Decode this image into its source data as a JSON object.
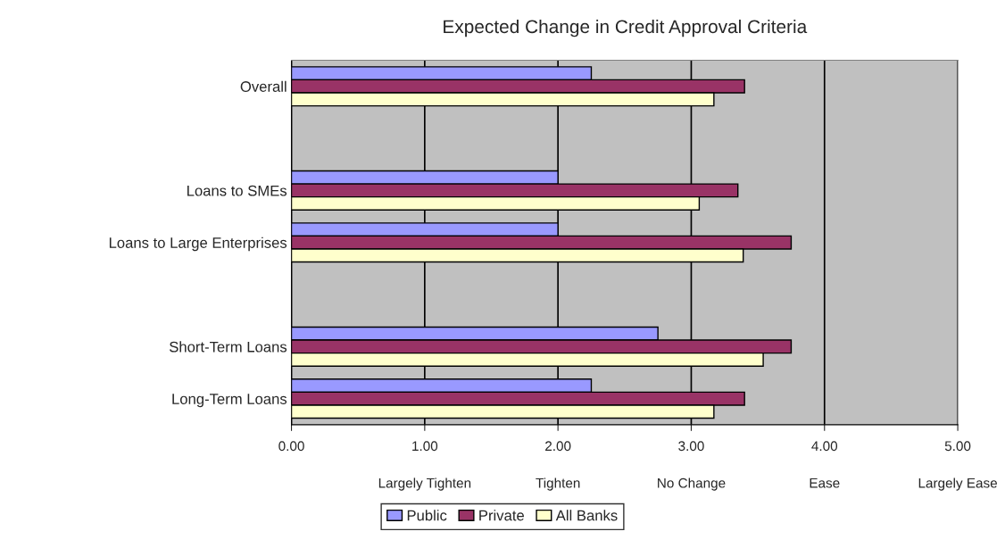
{
  "chart_data": {
    "type": "bar",
    "orientation": "horizontal",
    "title": "Expected Change in Credit Approval Criteria",
    "categories": [
      "Overall",
      null,
      "Loans to SMEs",
      "Loans to Large Enterprises",
      null,
      "Short-Term Loans",
      "Long-Term Loans"
    ],
    "series": [
      {
        "name": "Public",
        "color": "#9999ff",
        "values": [
          2.25,
          null,
          2.0,
          2.0,
          null,
          2.75,
          2.25
        ]
      },
      {
        "name": "Private",
        "color": "#993366",
        "values": [
          3.4,
          null,
          3.35,
          3.75,
          null,
          3.75,
          3.4
        ]
      },
      {
        "name": "All Banks",
        "color": "#ffffcc",
        "values": [
          3.17,
          null,
          3.06,
          3.39,
          null,
          3.54,
          3.17
        ]
      }
    ],
    "xlim": [
      0,
      5
    ],
    "xticks": [
      {
        "value": 0,
        "label": "0.00"
      },
      {
        "value": 1,
        "label": "1.00"
      },
      {
        "value": 2,
        "label": "2.00"
      },
      {
        "value": 3,
        "label": "3.00"
      },
      {
        "value": 4,
        "label": "4.00"
      },
      {
        "value": 5,
        "label": "5.00"
      }
    ],
    "annotations": [
      "Largely Tighten",
      "Tighten",
      "No Change",
      "Ease",
      "Largely Ease"
    ],
    "grid": "x",
    "legend": "bottom"
  }
}
